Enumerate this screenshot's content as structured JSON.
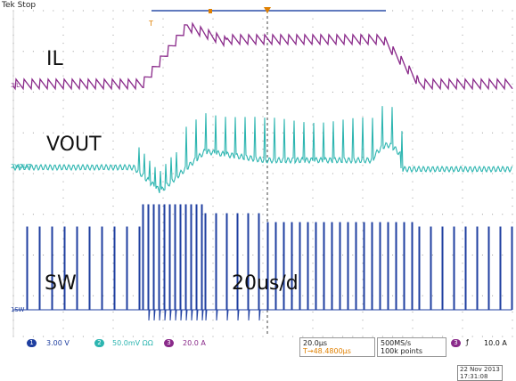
{
  "status": "Tek Stop",
  "annotations": {
    "il": "IL",
    "vout": "VOUT",
    "sw": "SW",
    "timebase_note": "20us/d"
  },
  "channels": [
    {
      "num": "1",
      "label": "SW",
      "scale": "3.00 V",
      "color": "#1f3fa0"
    },
    {
      "num": "2",
      "label": "VOUT",
      "scale": "50.0mV ΩΩ",
      "color": "#2cb5b0"
    },
    {
      "num": "3",
      "label": "IL",
      "scale": "20.0 A",
      "color": "#8a2a8a"
    }
  ],
  "horizontal": {
    "scale": "20.0µs",
    "position": "T→48.4800µs"
  },
  "acquisition": {
    "rate": "500MS/s",
    "points": "100k points"
  },
  "trigger": {
    "channel": "3",
    "edge": "ƒ",
    "level": "10.0 A"
  },
  "date": {
    "day": "22 Nov 2013",
    "time": "17:31:08"
  },
  "colors": {
    "il": "#8a2a8a",
    "vout": "#2cb5b0",
    "sw": "#1f3fa0",
    "grid": "#9a9a9a"
  }
}
